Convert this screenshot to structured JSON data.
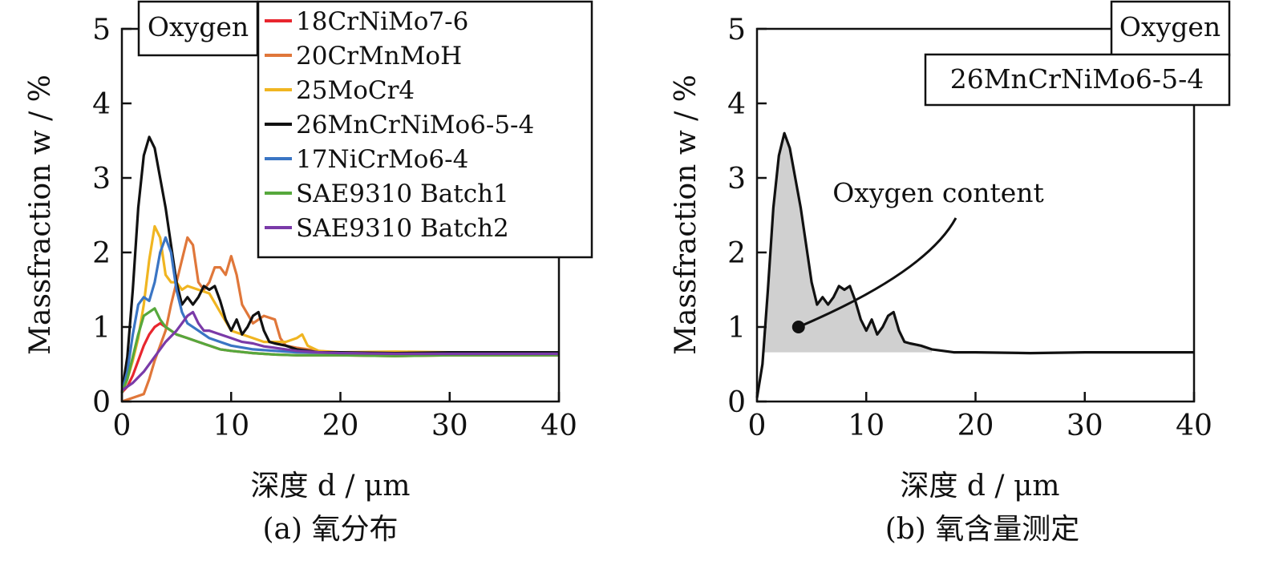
{
  "figure": {
    "panels": [
      {
        "caption": "(a) 氧分布",
        "title_box": "Oxygen",
        "ylabel": "Massfraction w / %",
        "xlabel": "深度 d / μm",
        "xticks": [
          "0",
          "10",
          "20",
          "30",
          "40"
        ],
        "yticks": [
          "0",
          "1",
          "2",
          "3",
          "4",
          "5"
        ],
        "legend": {
          "placement": "top-right",
          "entries": [
            {
              "label": "18CrNiMo7-6",
              "color": "#e8262e"
            },
            {
              "label": "20CrMnMoH",
              "color": "#e0773a"
            },
            {
              "label": "25MoCr4",
              "color": "#f0b521"
            },
            {
              "label": "26MnCrNiMo6-5-4",
              "color": "#111111"
            },
            {
              "label": "17NiCrMo6-4",
              "color": "#3a75c4"
            },
            {
              "label": "SAE9310 Batch1",
              "color": "#56a83c"
            },
            {
              "label": "SAE9310 Batch2",
              "color": "#7a3aa8"
            }
          ]
        }
      },
      {
        "caption": "(b) 氧含量测定",
        "title_box": "Oxygen",
        "material_box": "26MnCrNiMo6-5-4",
        "annotation": "Oxygen content",
        "ylabel": "Massfraction w / %",
        "xlabel": "深度 d / μm",
        "xticks": [
          "0",
          "10",
          "20",
          "30",
          "40"
        ],
        "yticks": [
          "0",
          "1",
          "2",
          "3",
          "4",
          "5"
        ]
      }
    ]
  },
  "chart_data": [
    {
      "type": "line",
      "xlabel": "深度 d / μm",
      "ylabel": "Massfraction w / %",
      "xlim": [
        0,
        40
      ],
      "ylim": [
        0,
        5
      ],
      "grid": false,
      "legend_position": "top-right",
      "series": [
        {
          "name": "18CrNiMo7-6",
          "color": "#e8262e",
          "x": [
            0,
            0.5,
            1,
            1.5,
            2,
            2.5,
            3,
            3.5,
            4,
            4.5,
            5,
            6,
            7,
            8,
            9,
            10,
            12,
            14,
            16,
            20,
            25,
            30,
            35,
            40
          ],
          "y": [
            0.12,
            0.2,
            0.35,
            0.55,
            0.75,
            0.9,
            1.0,
            1.05,
            1.0,
            0.95,
            0.9,
            0.85,
            0.8,
            0.75,
            0.7,
            0.68,
            0.65,
            0.63,
            0.62,
            0.62,
            0.61,
            0.62,
            0.62,
            0.62
          ]
        },
        {
          "name": "20CrMnMoH",
          "color": "#e0773a",
          "x": [
            0,
            1,
            2,
            2.5,
            3,
            3.5,
            4,
            4.5,
            5,
            5.5,
            6,
            6.5,
            7,
            7.5,
            8,
            8.5,
            9,
            9.5,
            10,
            10.5,
            11,
            12,
            13,
            14,
            14.5,
            15,
            16,
            18,
            20,
            25,
            30,
            35,
            40
          ],
          "y": [
            0,
            0.05,
            0.1,
            0.3,
            0.55,
            0.75,
            0.95,
            1.3,
            1.6,
            1.9,
            2.2,
            2.1,
            1.6,
            1.5,
            1.6,
            1.8,
            1.8,
            1.7,
            1.95,
            1.7,
            1.3,
            1.05,
            1.15,
            1.1,
            0.85,
            0.75,
            0.72,
            0.68,
            0.65,
            0.64,
            0.64,
            0.63,
            0.64
          ]
        },
        {
          "name": "25MoCr4",
          "color": "#f0b521",
          "x": [
            0,
            0.5,
            1,
            1.5,
            2,
            2.5,
            3,
            3.5,
            4,
            4.5,
            5,
            5.5,
            6,
            7,
            8,
            9,
            10,
            11,
            12,
            13,
            14,
            15,
            16,
            16.5,
            17,
            18,
            20,
            25,
            30,
            35,
            40
          ],
          "y": [
            0.12,
            0.3,
            0.55,
            0.85,
            1.3,
            1.9,
            2.35,
            2.2,
            1.7,
            1.6,
            1.6,
            1.5,
            1.55,
            1.5,
            1.45,
            1.2,
            0.95,
            0.9,
            0.85,
            0.8,
            0.8,
            0.8,
            0.85,
            0.9,
            0.75,
            0.68,
            0.66,
            0.67,
            0.66,
            0.66,
            0.66
          ]
        },
        {
          "name": "26MnCrNiMo6-5-4",
          "color": "#111111",
          "x": [
            0,
            0.5,
            1,
            1.5,
            2,
            2.5,
            3,
            3.5,
            4,
            4.5,
            5,
            5.5,
            6,
            6.5,
            7,
            7.5,
            8,
            8.5,
            9,
            9.5,
            10,
            10.5,
            11,
            11.5,
            12,
            12.5,
            13,
            13.5,
            14,
            15,
            16,
            18,
            20,
            25,
            30,
            35,
            40
          ],
          "y": [
            0.12,
            0.6,
            1.5,
            2.6,
            3.3,
            3.55,
            3.4,
            3.0,
            2.6,
            2.1,
            1.6,
            1.3,
            1.4,
            1.3,
            1.4,
            1.55,
            1.5,
            1.55,
            1.35,
            1.1,
            0.95,
            1.1,
            0.9,
            1.0,
            1.15,
            1.2,
            0.95,
            0.8,
            0.78,
            0.75,
            0.7,
            0.66,
            0.66,
            0.65,
            0.66,
            0.66,
            0.66
          ]
        },
        {
          "name": "17NiCrMo6-4",
          "color": "#3a75c4",
          "x": [
            0,
            0.5,
            1,
            1.5,
            2,
            2.5,
            3,
            3.5,
            4,
            4.5,
            5,
            5.5,
            6,
            7,
            8,
            9,
            10,
            12,
            14,
            16,
            20,
            25,
            30,
            35,
            40
          ],
          "y": [
            0.12,
            0.4,
            0.9,
            1.3,
            1.4,
            1.35,
            1.6,
            2.0,
            2.2,
            2.0,
            1.5,
            1.2,
            1.05,
            0.95,
            0.85,
            0.8,
            0.75,
            0.7,
            0.68,
            0.66,
            0.65,
            0.64,
            0.64,
            0.64,
            0.64
          ]
        },
        {
          "name": "SAE9310 Batch1",
          "color": "#56a83c",
          "x": [
            0,
            0.5,
            1,
            1.5,
            2,
            2.5,
            3,
            3.5,
            4,
            4.5,
            5,
            6,
            7,
            8,
            9,
            10,
            12,
            14,
            16,
            20,
            25,
            30,
            35,
            40
          ],
          "y": [
            0.12,
            0.3,
            0.6,
            0.9,
            1.15,
            1.2,
            1.25,
            1.1,
            1.0,
            0.95,
            0.9,
            0.85,
            0.8,
            0.75,
            0.7,
            0.68,
            0.65,
            0.63,
            0.62,
            0.62,
            0.61,
            0.62,
            0.62,
            0.62
          ]
        },
        {
          "name": "SAE9310 Batch2",
          "color": "#7a3aa8",
          "x": [
            0,
            1,
            2,
            3,
            4,
            5,
            5.5,
            6,
            6.5,
            7,
            7.5,
            8,
            9,
            10,
            11,
            12,
            13,
            14,
            15,
            16,
            18,
            20,
            25,
            30,
            35,
            40
          ],
          "y": [
            0.15,
            0.25,
            0.4,
            0.6,
            0.8,
            0.95,
            1.05,
            1.15,
            1.2,
            1.05,
            0.95,
            0.95,
            0.9,
            0.85,
            0.8,
            0.78,
            0.74,
            0.72,
            0.7,
            0.68,
            0.66,
            0.65,
            0.64,
            0.64,
            0.64,
            0.64
          ]
        }
      ]
    },
    {
      "type": "area",
      "xlabel": "深度 d / μm",
      "ylabel": "Massfraction w / %",
      "xlim": [
        0,
        40
      ],
      "ylim": [
        0,
        5
      ],
      "grid": false,
      "baseline": 0.66,
      "annotation_point": [
        3.8,
        1.0
      ],
      "series": [
        {
          "name": "26MnCrNiMo6-5-4",
          "color": "#111111",
          "x": [
            0,
            0.5,
            1,
            1.5,
            2,
            2.5,
            3,
            3.5,
            4,
            4.5,
            5,
            5.5,
            6,
            6.5,
            7,
            7.5,
            8,
            8.5,
            9,
            9.5,
            10,
            10.5,
            11,
            11.5,
            12,
            12.5,
            13,
            13.5,
            14,
            15,
            16,
            18,
            20,
            25,
            30,
            35,
            40
          ],
          "y": [
            0.05,
            0.5,
            1.5,
            2.6,
            3.3,
            3.6,
            3.4,
            3.0,
            2.6,
            2.1,
            1.6,
            1.3,
            1.4,
            1.3,
            1.4,
            1.55,
            1.5,
            1.55,
            1.35,
            1.1,
            0.95,
            1.1,
            0.9,
            1.0,
            1.15,
            1.2,
            0.95,
            0.8,
            0.78,
            0.75,
            0.7,
            0.66,
            0.66,
            0.65,
            0.66,
            0.66,
            0.66
          ]
        }
      ]
    }
  ]
}
